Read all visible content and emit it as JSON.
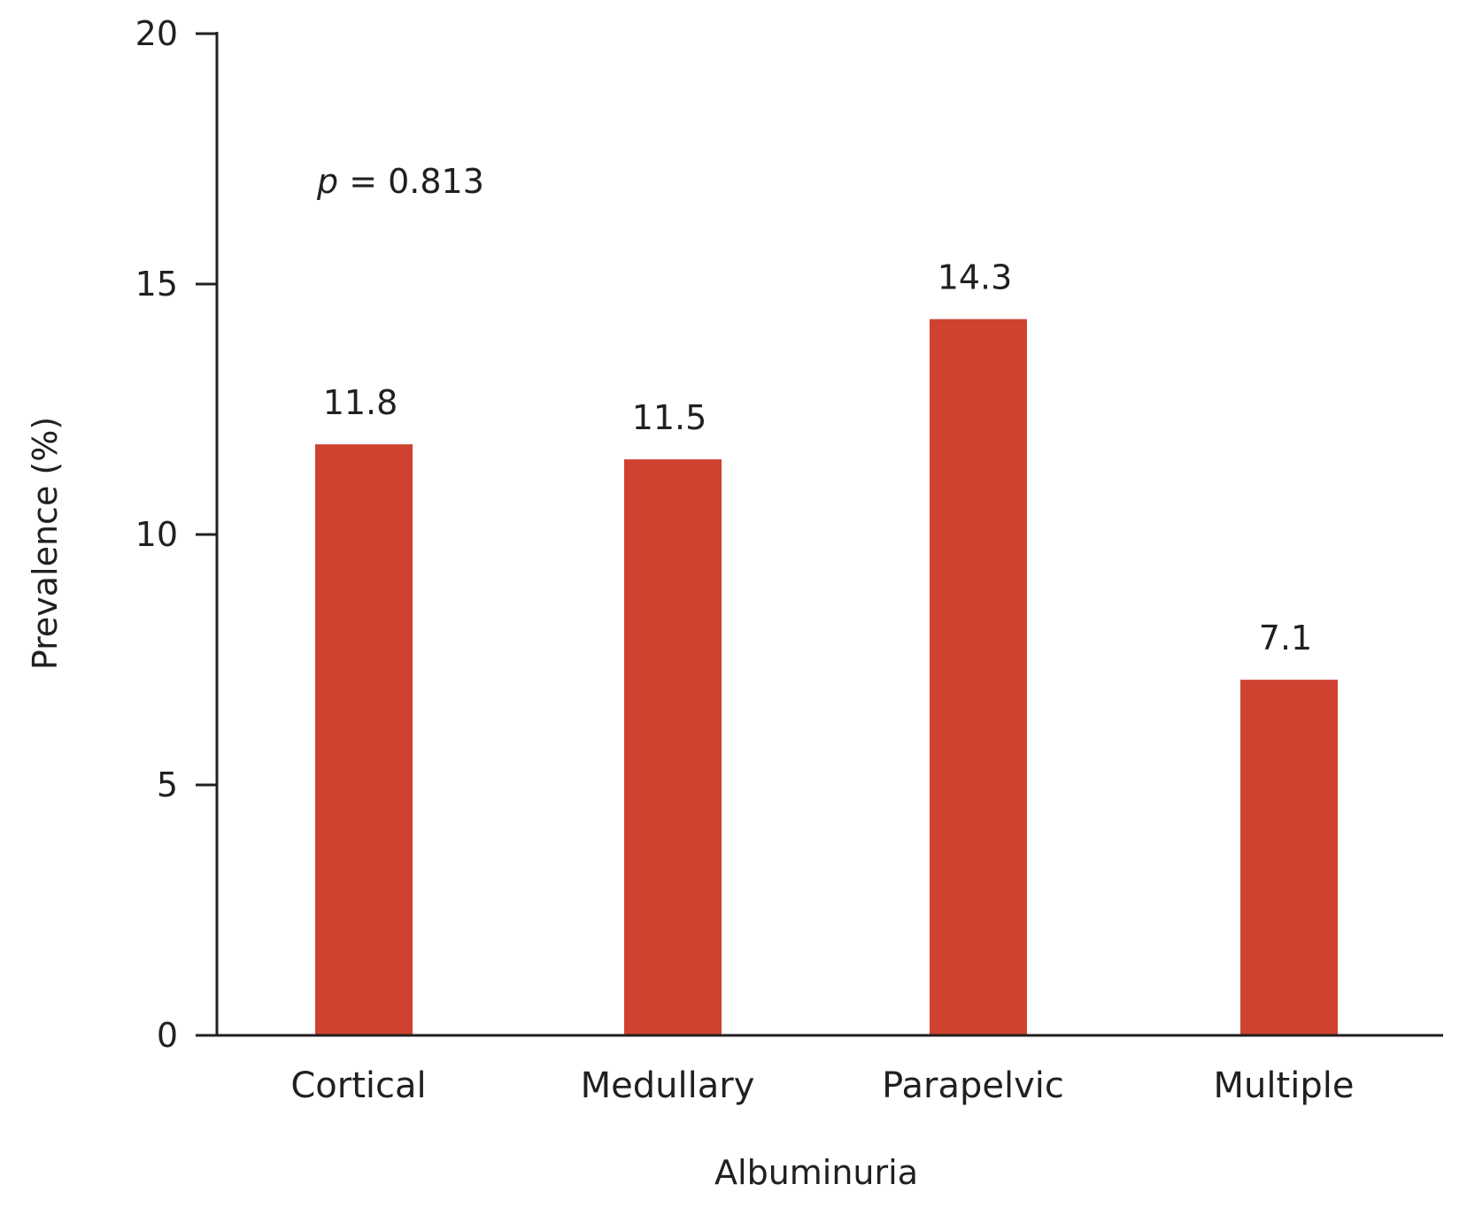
{
  "chart_data": {
    "type": "bar",
    "categories": [
      "Cortical",
      "Medullary",
      "Parapelvic",
      "Multiple"
    ],
    "values": [
      11.8,
      11.5,
      14.3,
      7.1
    ],
    "data_labels": [
      "11.8",
      "11.5",
      "14.3",
      "7.1"
    ],
    "xlabel": "Albuminuria",
    "ylabel": "Prevalence (%)",
    "ylim": [
      0,
      20
    ],
    "yticks": [
      0,
      5,
      10,
      15,
      20
    ],
    "ytick_labels": [
      "0",
      "5",
      "10",
      "15",
      "20"
    ],
    "annotation": {
      "italic": "p",
      "rest": " = 0.813"
    },
    "bar_color": "#cf4230",
    "axis_color": "#231f20",
    "grid": false,
    "legend": "none"
  }
}
